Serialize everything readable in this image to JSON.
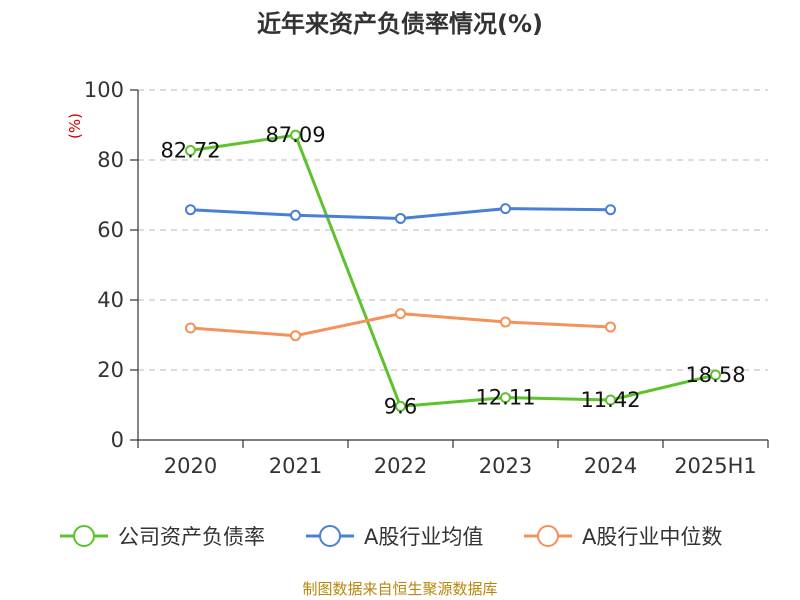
{
  "title": "近年来资产负债率情况(%)",
  "y_unit": "(%)",
  "source": "制图数据来自恒生聚源数据库",
  "chart_data": {
    "type": "line",
    "title": "近年来资产负债率情况(%)",
    "ylabel": "(%)",
    "xlabel": "",
    "categories": [
      "2020",
      "2021",
      "2022",
      "2023",
      "2024",
      "2025H1"
    ],
    "ylim": [
      0,
      100
    ],
    "yticks": [
      0,
      20,
      40,
      60,
      80,
      100
    ],
    "grid": true,
    "legend_position": "bottom",
    "series": [
      {
        "name": "公司资产负债率",
        "color": "#5dc22d",
        "values": [
          82.72,
          87.09,
          9.6,
          12.11,
          11.42,
          18.58
        ],
        "labels": [
          "82.72",
          "87.09",
          "9.6",
          "12.11",
          "11.42",
          "18.58"
        ]
      },
      {
        "name": "A股行业均值",
        "color": "#4a7fd6",
        "values": [
          65.8,
          64.2,
          63.3,
          66.1,
          65.8,
          null
        ]
      },
      {
        "name": "A股行业中位数",
        "color": "#f5915a",
        "values": [
          32.0,
          29.8,
          36.1,
          33.7,
          32.3,
          null
        ]
      }
    ]
  }
}
